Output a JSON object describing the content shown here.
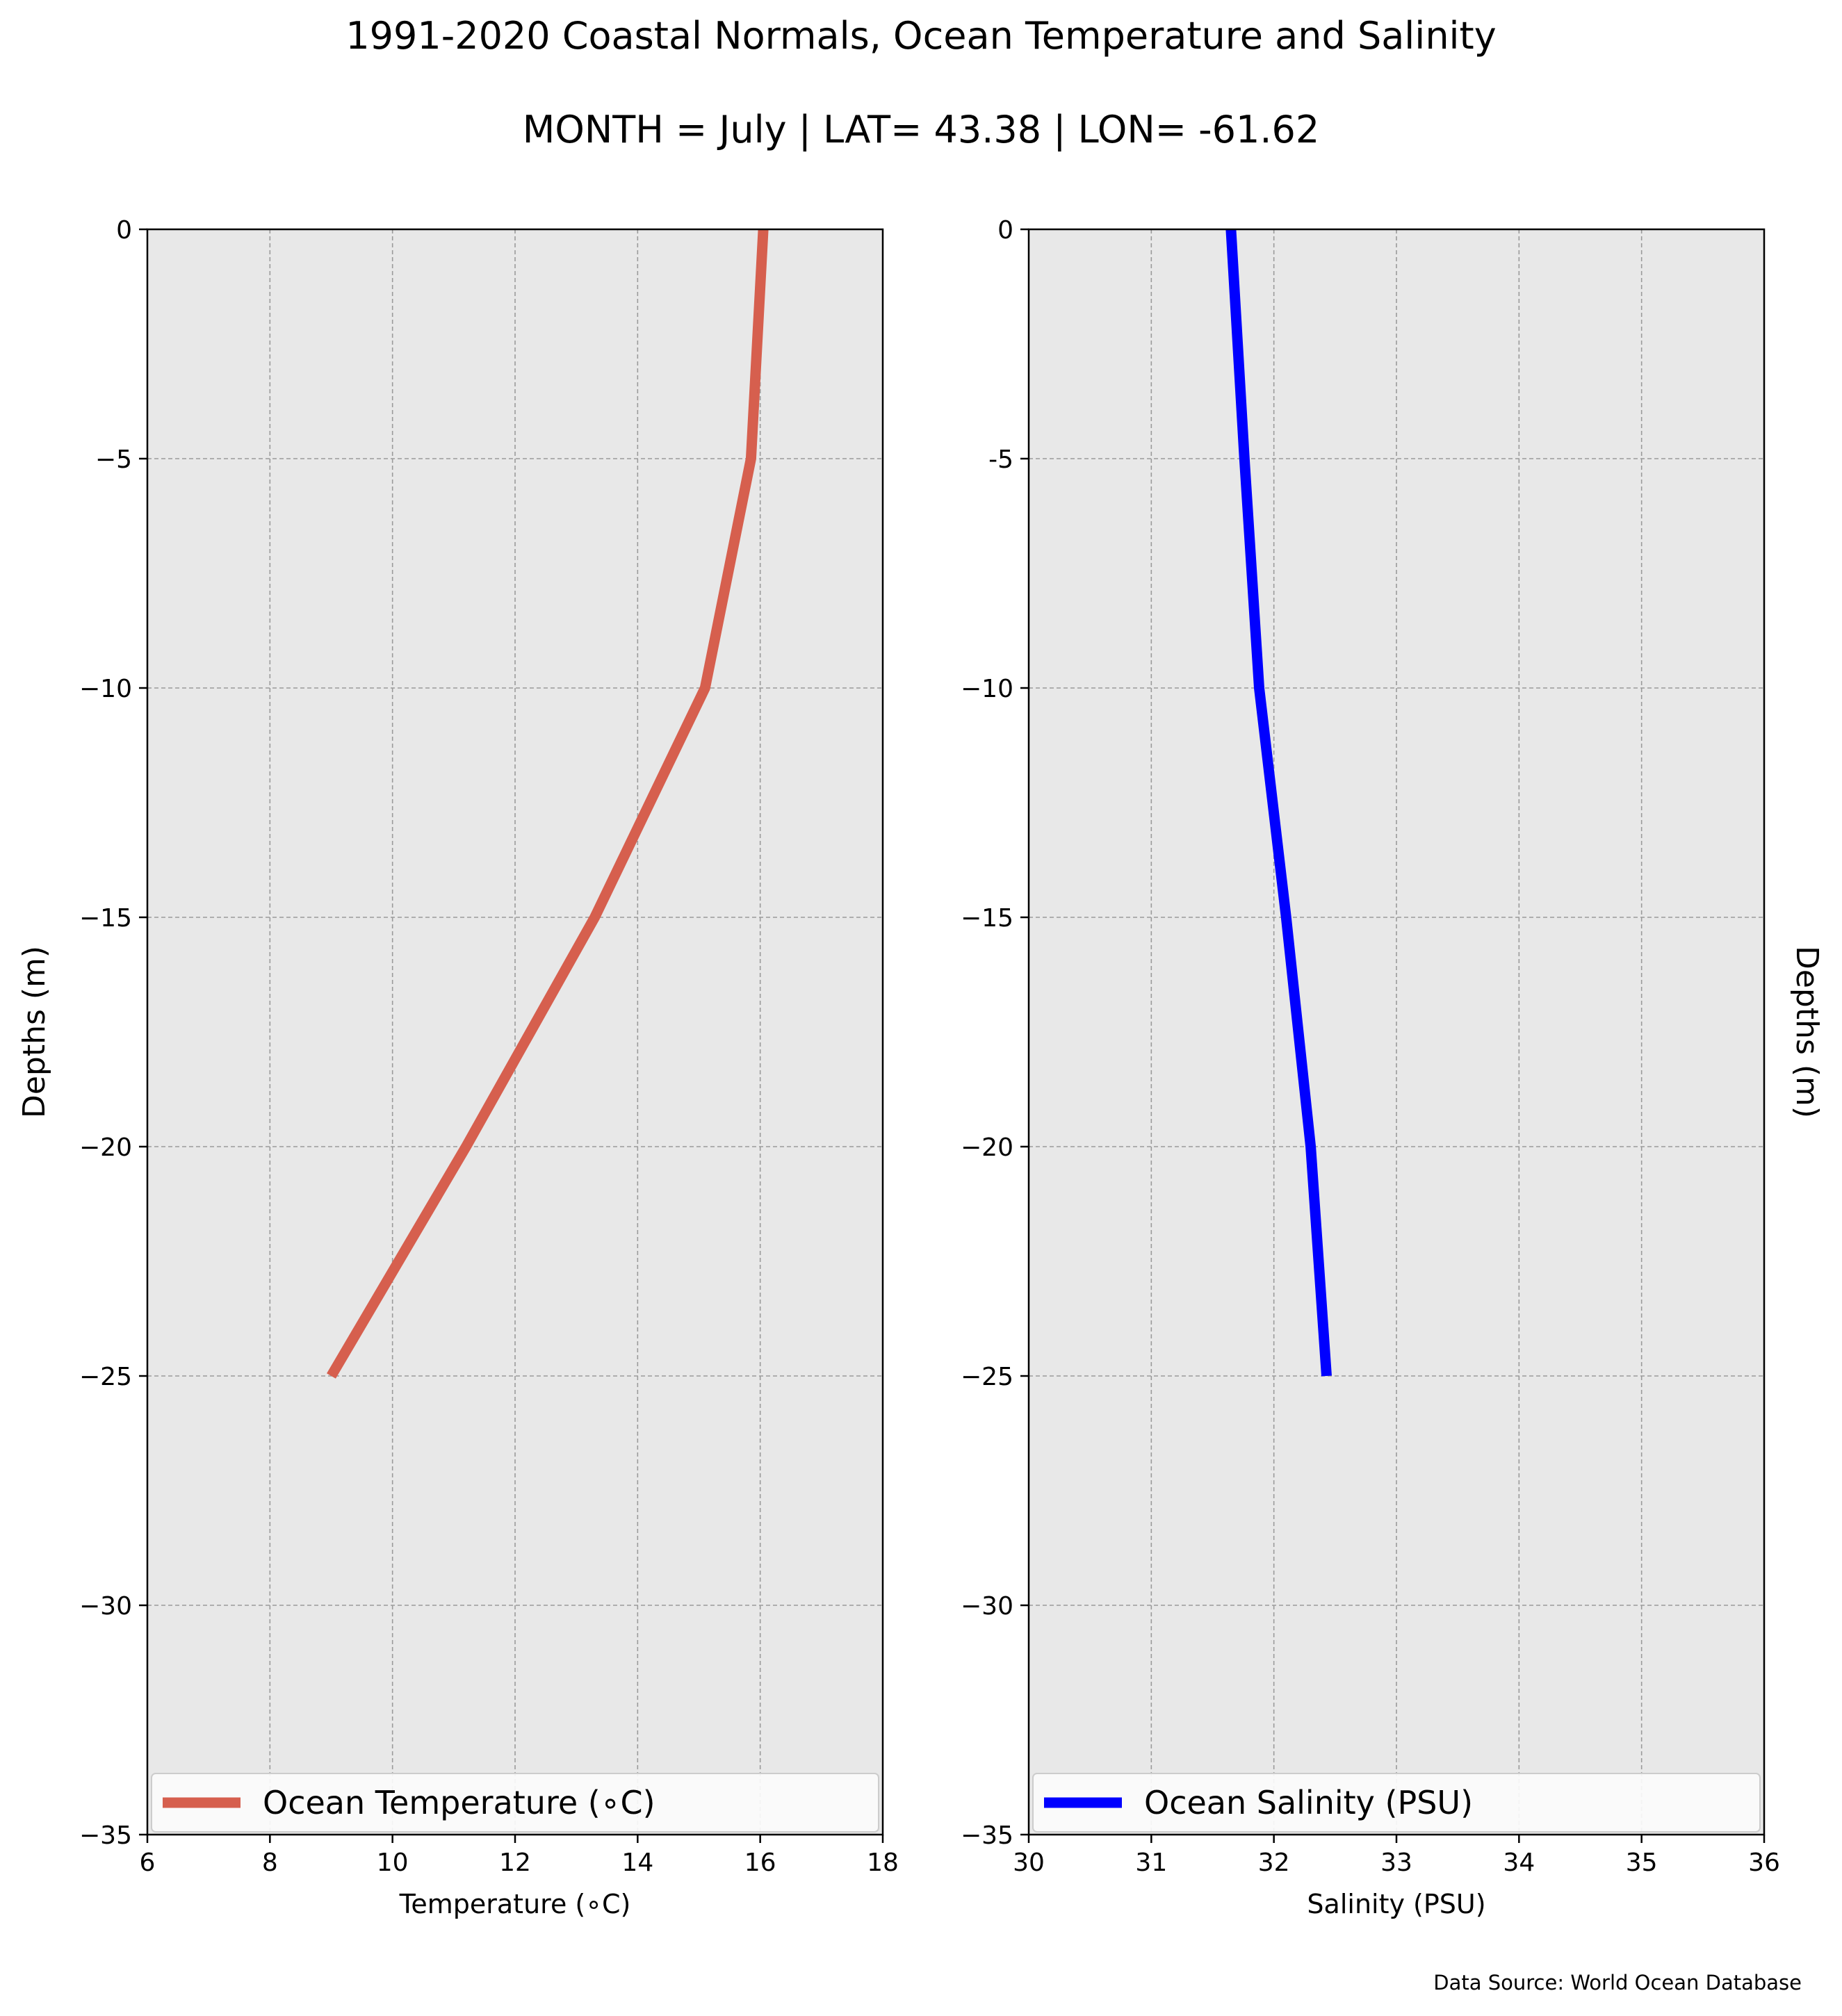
{
  "title": "1991-2020 Coastal Normals, Ocean Temperature and Salinity",
  "subtitle": "MONTH = July | LAT= 43.38 | LON= -61.62",
  "source": "Data Source: World Ocean Database",
  "chart_data": [
    {
      "type": "line",
      "xlabel": "Temperature (∘C)",
      "ylabel": "Depths (m)",
      "xlim": [
        6,
        18
      ],
      "ylim": [
        -35,
        0
      ],
      "xticks": [
        "6",
        "8",
        "10",
        "12",
        "14",
        "16",
        "18"
      ],
      "yticks": [
        "0",
        "−5",
        "−10",
        "−15",
        "−20",
        "−25",
        "−30",
        "−35"
      ],
      "grid": true,
      "legend_position": "lower-center",
      "series": [
        {
          "name": "Ocean Temperature (∘C)",
          "color": "#d65f4e",
          "x": [
            16.05,
            15.85,
            15.1,
            13.3,
            11.2,
            9.0
          ],
          "y": [
            0,
            -5,
            -10,
            -15,
            -20,
            -25
          ]
        }
      ]
    },
    {
      "type": "line",
      "xlabel": "Salinity (PSU)",
      "ylabel": "Depths (m)",
      "xlim": [
        30,
        36
      ],
      "ylim": [
        -35,
        0
      ],
      "xticks": [
        "30",
        "31",
        "32",
        "33",
        "34",
        "35",
        "36"
      ],
      "yticks": [
        "0",
        "-5",
        "−10",
        "−15",
        "−20",
        "−25",
        "−30",
        "−35"
      ],
      "grid": true,
      "legend_position": "lower-center",
      "series": [
        {
          "name": "Ocean Salinity (PSU)",
          "color": "#0000ff",
          "x": [
            31.65,
            31.76,
            31.88,
            32.1,
            32.3,
            32.43
          ],
          "y": [
            0,
            -5,
            -10,
            -15,
            -20,
            -25
          ]
        }
      ]
    }
  ]
}
